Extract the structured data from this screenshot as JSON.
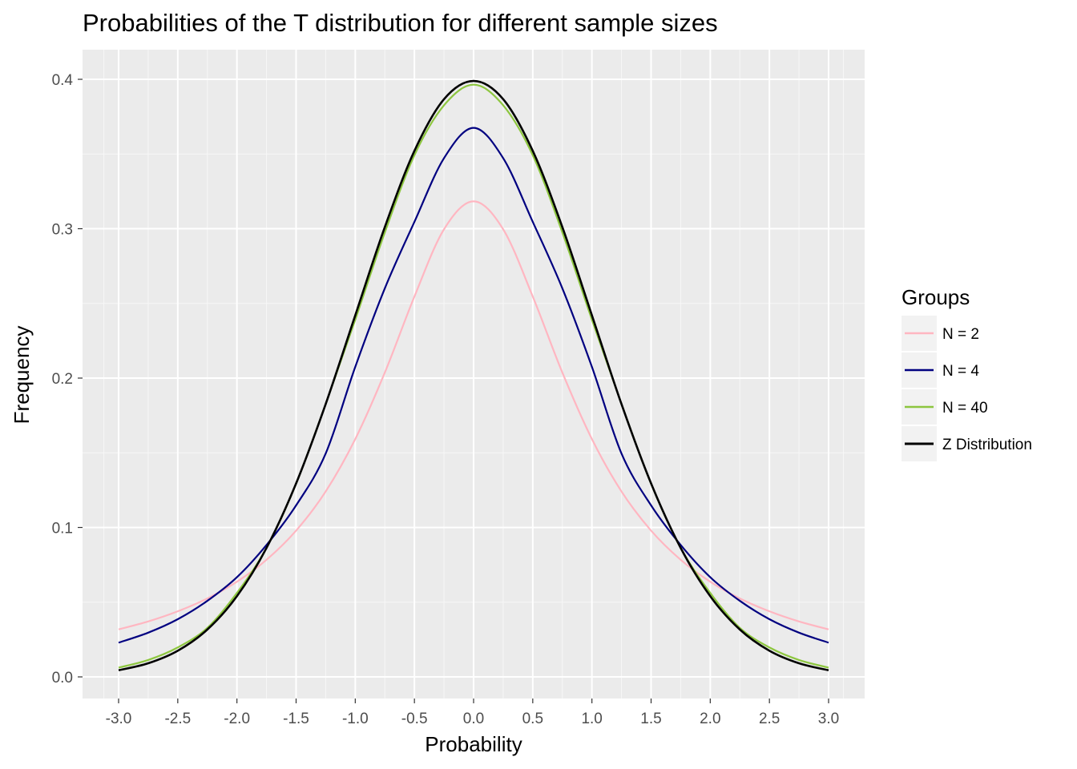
{
  "chart_data": {
    "type": "line",
    "title": "Probabilities of the T distribution for different sample sizes",
    "xlabel": "Probability",
    "ylabel": "Frequency",
    "xlim": [
      -3.0,
      3.0
    ],
    "ylim": [
      0.0,
      0.4
    ],
    "x_ticks": [
      "-3.0",
      "-2.5",
      "-2.0",
      "-1.5",
      "-1.0",
      "-0.5",
      "0.0",
      "0.5",
      "1.0",
      "1.5",
      "2.0",
      "2.5",
      "3.0"
    ],
    "y_ticks": [
      "0.0",
      "0.1",
      "0.2",
      "0.3",
      "0.4"
    ],
    "x": [
      -3.0,
      -2.75,
      -2.5,
      -2.25,
      -2.0,
      -1.75,
      -1.5,
      -1.25,
      -1.0,
      -0.75,
      -0.5,
      -0.25,
      0.0,
      0.25,
      0.5,
      0.75,
      1.0,
      1.25,
      1.5,
      1.75,
      2.0,
      2.25,
      2.5,
      2.75,
      3.0
    ],
    "series": [
      {
        "name": "N = 2",
        "color": "#ffb6c1",
        "values": [
          0.0318,
          0.0371,
          0.0439,
          0.0525,
          0.0637,
          0.0784,
          0.0979,
          0.1241,
          0.1592,
          0.2037,
          0.2546,
          0.2996,
          0.3183,
          0.2996,
          0.2546,
          0.2037,
          0.1592,
          0.1241,
          0.0979,
          0.0784,
          0.0637,
          0.0525,
          0.0439,
          0.0371,
          0.0318
        ]
      },
      {
        "name": "N = 4",
        "color": "#000080",
        "values": [
          0.0229,
          0.0296,
          0.0386,
          0.0509,
          0.0667,
          0.0883,
          0.1148,
          0.1495,
          0.2075,
          0.2601,
          0.3046,
          0.3472,
          0.3675,
          0.3472,
          0.3046,
          0.2601,
          0.2075,
          0.1495,
          0.1148,
          0.0883,
          0.0667,
          0.0509,
          0.0386,
          0.0296,
          0.0229
        ]
      },
      {
        "name": "N = 40",
        "color": "#8dc63f",
        "values": [
          0.0062,
          0.0113,
          0.0197,
          0.0328,
          0.0562,
          0.0864,
          0.1293,
          0.1826,
          0.2391,
          0.2975,
          0.3492,
          0.3826,
          0.3964,
          0.3826,
          0.3492,
          0.2975,
          0.2391,
          0.1826,
          0.1293,
          0.0864,
          0.0562,
          0.0328,
          0.0197,
          0.0113,
          0.0062
        ]
      },
      {
        "name": "Z Distribution",
        "color": "#000000",
        "values": [
          0.0044,
          0.0091,
          0.0175,
          0.0317,
          0.054,
          0.0863,
          0.1295,
          0.1826,
          0.242,
          0.3011,
          0.3521,
          0.3867,
          0.3989,
          0.3867,
          0.3521,
          0.3011,
          0.242,
          0.1826,
          0.1295,
          0.0863,
          0.054,
          0.0317,
          0.0175,
          0.0091,
          0.0044
        ]
      }
    ],
    "legend": {
      "title": "Groups",
      "placement": "right"
    },
    "grid": true
  }
}
